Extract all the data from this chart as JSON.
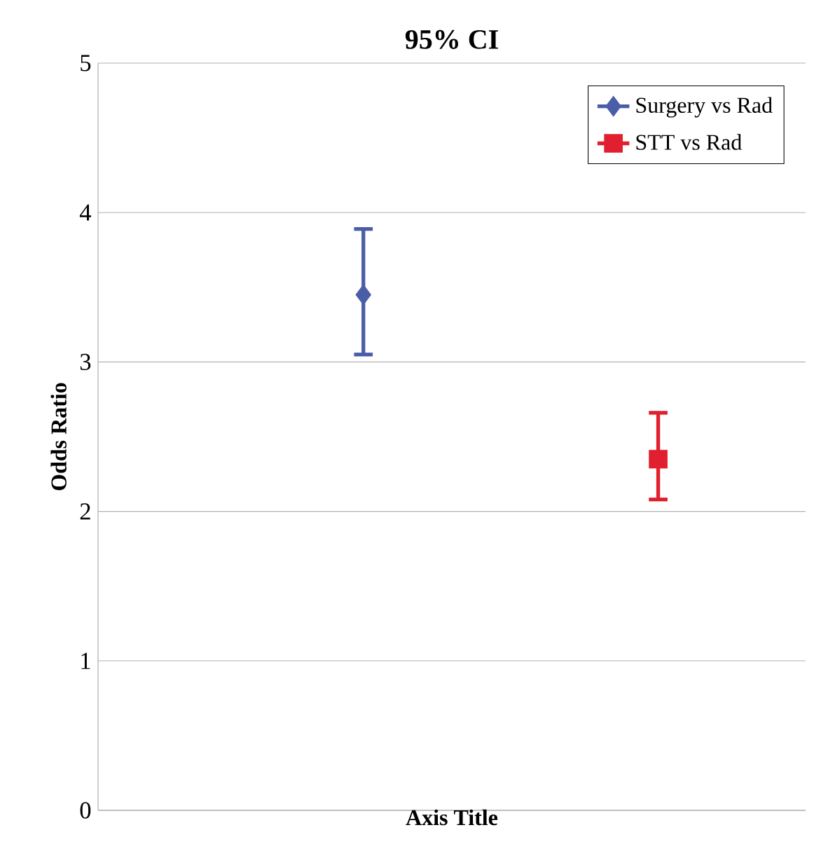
{
  "chart_data": {
    "type": "line",
    "title": "95% CI",
    "xlabel": "Axis Title",
    "ylabel": "Odds Ratio",
    "categories": [
      null,
      null,
      null,
      null,
      null,
      null,
      null,
      null,
      null,
      null,
      null,
      null
    ],
    "series": [
      {
        "name": "Surgery vs Rad",
        "color": "#4a5ea8",
        "marker": "diamond",
        "values": [
          null,
          null,
          null,
          null,
          3.45,
          null,
          null,
          null,
          null,
          null,
          null,
          null
        ],
        "errors": [
          null,
          null,
          null,
          null,
          [
            3.05,
            3.89
          ],
          null,
          null,
          null,
          null,
          null,
          null,
          null
        ]
      },
      {
        "name": "STT vs Rad",
        "color": "#e0202e",
        "marker": "square",
        "values": [
          null,
          null,
          null,
          null,
          null,
          null,
          null,
          null,
          null,
          2.35,
          null,
          null
        ],
        "errors": [
          null,
          null,
          null,
          null,
          null,
          null,
          null,
          null,
          null,
          [
            2.08,
            2.66
          ],
          null,
          null
        ]
      }
    ],
    "ylim": [
      0,
      5
    ],
    "yticks": [
      0,
      1,
      2,
      3,
      4,
      5
    ],
    "grid": "y",
    "legend": "top right",
    "line_style": "solid"
  }
}
